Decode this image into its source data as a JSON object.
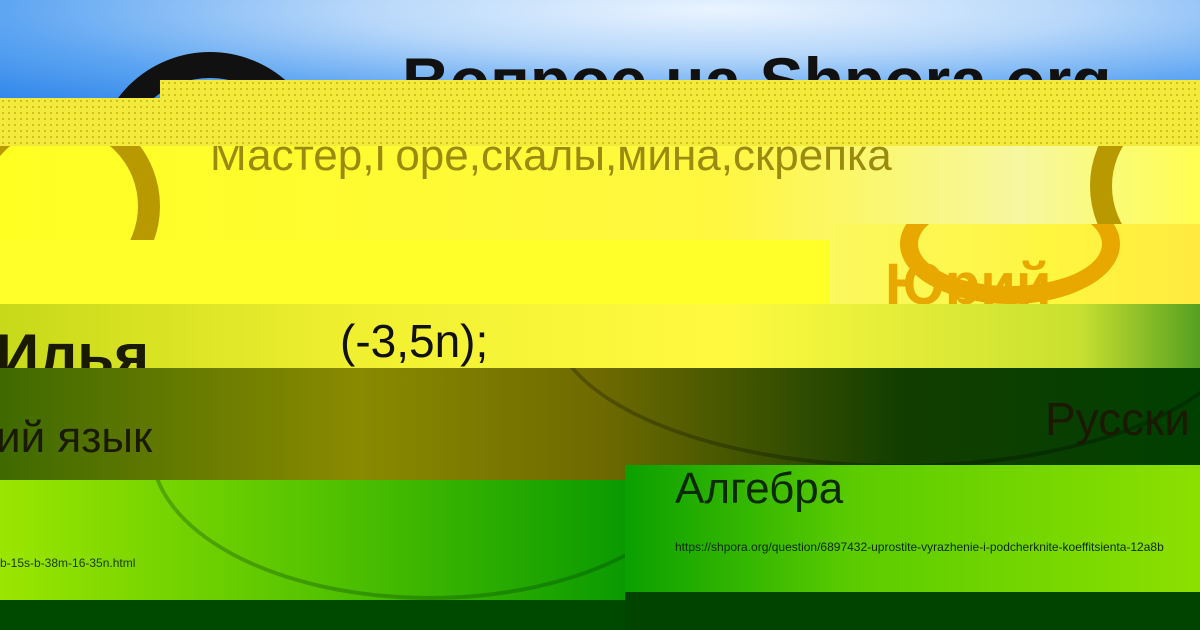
{
  "header": {
    "title": "Вопрос на Shpora.org"
  },
  "question": {
    "text": "Мастер,Горе,скалы,мина,скрепка",
    "formula": "(-3,5n);"
  },
  "cards": [
    {
      "author": "Илья",
      "subject": "ий язык",
      "url": "b-15s-b-38m-16-35n.html"
    },
    {
      "author": "Юрий",
      "subject": "Алгебра",
      "url": "https://shpora.org/question/6897432-uprostite-vyrazhenie-i-podcherknite-koeffitsienta-12a8b"
    },
    {
      "subject": "Русски"
    }
  ],
  "colors": {
    "sky": "#5fa6f2",
    "yellow": "#ffff2a",
    "green": "#56c400",
    "dark_green": "#004400",
    "author_orange": "#e8a800"
  }
}
